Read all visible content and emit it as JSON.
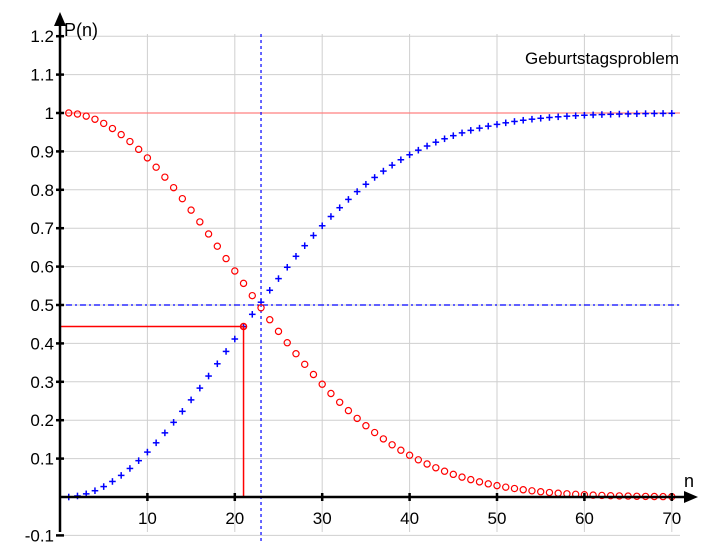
{
  "chart_data": {
    "type": "scatter",
    "title": "Geburtstagsproblem",
    "xlabel": "n",
    "ylabel": "P(n)",
    "xlim": [
      0,
      72
    ],
    "ylim": [
      -0.1,
      1.25
    ],
    "grid": true,
    "x_ticks": [
      10,
      20,
      30,
      40,
      50,
      60,
      70
    ],
    "y_ticks": [
      -0.1,
      0.1,
      0.2,
      0.3,
      0.4,
      0.5,
      0.6,
      0.7,
      0.8,
      0.9,
      1,
      1.1,
      1.2
    ],
    "n_range": [
      1,
      70
    ],
    "series": [
      {
        "marker": "circle",
        "color": "#ff0000",
        "formula": "product_{k=0}^{n-1} (365-k)/365"
      },
      {
        "marker": "plus",
        "color": "#0000ff",
        "formula": "1 - product_{k=0}^{n-1} (365-k)/365"
      }
    ],
    "reference_lines": [
      {
        "axis": "y",
        "value": 1,
        "color": "#ff8080",
        "style": "solid"
      },
      {
        "axis": "y",
        "value": 0.5,
        "color": "#0000ff",
        "style": "dashdot"
      },
      {
        "axis": "x",
        "value": 23,
        "color": "#0000ff",
        "style": "dotted"
      }
    ],
    "highlight": {
      "x": 21,
      "y": 0.444,
      "color": "#ff0000"
    }
  }
}
